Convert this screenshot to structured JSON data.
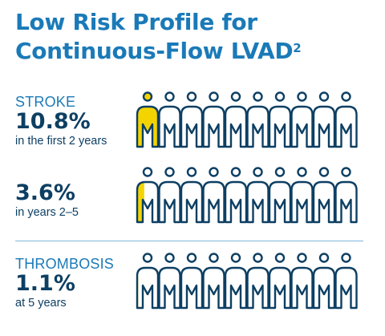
{
  "title_line1": "Low Risk Profile for",
  "title_line2": "Continuous-Flow LVAD",
  "title_superscript": "2",
  "stats": [
    {
      "label": "STROKE",
      "value": "10.8%",
      "sub": "in the first 2 years",
      "percent": 10.8
    },
    {
      "label": "",
      "value": "3.6%",
      "sub": "in years 2–5",
      "percent": 3.6
    },
    {
      "label": "THROMBOSIS",
      "value": "1.1%",
      "sub": "at 5 years",
      "percent": 1.1
    }
  ],
  "figures_per_row": 10,
  "colors": {
    "title": "#1a7ab8",
    "dark": "#0d3f63",
    "highlight": "#f4d400",
    "divider": "#7fb7dc"
  },
  "icon": "person-icon"
}
